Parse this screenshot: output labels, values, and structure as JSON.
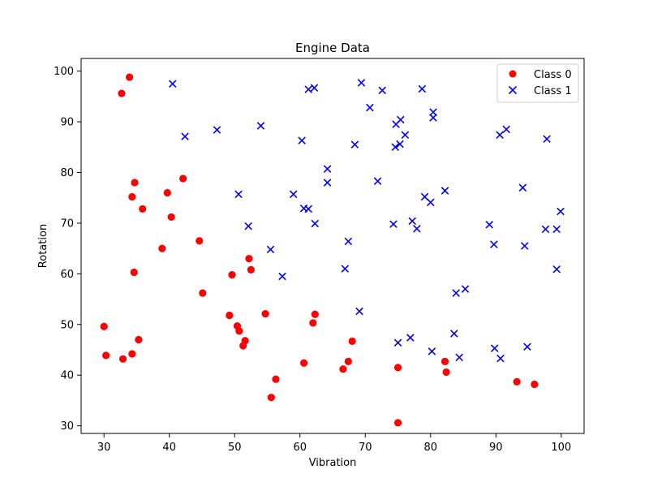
{
  "chart_data": {
    "type": "scatter",
    "title": "Engine Data",
    "xlabel": "Vibration",
    "ylabel": "Rotation",
    "xlim": [
      26.5,
      103.5
    ],
    "ylim": [
      28.5,
      102.5
    ],
    "xticks": [
      30,
      40,
      50,
      60,
      70,
      80,
      90,
      100
    ],
    "yticks": [
      30,
      40,
      50,
      60,
      70,
      80,
      90,
      100
    ],
    "grid": false,
    "legend_position": "top-right",
    "series": [
      {
        "name": "Class 0",
        "color": "#ff0000",
        "marker": "circle",
        "points": [
          [
            32.7,
            95.6
          ],
          [
            33.9,
            98.8
          ],
          [
            30.0,
            49.6
          ],
          [
            30.3,
            43.9
          ],
          [
            32.9,
            43.2
          ],
          [
            34.3,
            75.2
          ],
          [
            34.7,
            78.0
          ],
          [
            35.9,
            72.8
          ],
          [
            34.6,
            60.3
          ],
          [
            34.3,
            44.2
          ],
          [
            35.3,
            47.0
          ],
          [
            38.9,
            65.0
          ],
          [
            39.7,
            76.0
          ],
          [
            40.3,
            71.2
          ],
          [
            42.1,
            78.8
          ],
          [
            44.6,
            66.5
          ],
          [
            45.1,
            56.2
          ],
          [
            49.2,
            51.8
          ],
          [
            49.6,
            59.8
          ],
          [
            50.4,
            49.7
          ],
          [
            50.7,
            48.7
          ],
          [
            51.3,
            45.8
          ],
          [
            51.6,
            46.8
          ],
          [
            52.2,
            63.0
          ],
          [
            52.5,
            60.8
          ],
          [
            54.7,
            52.1
          ],
          [
            55.6,
            35.6
          ],
          [
            56.3,
            39.2
          ],
          [
            60.6,
            42.4
          ],
          [
            62.0,
            50.3
          ],
          [
            62.3,
            52.0
          ],
          [
            66.6,
            41.2
          ],
          [
            67.4,
            42.7
          ],
          [
            68.0,
            46.7
          ],
          [
            75.0,
            41.5
          ],
          [
            75.0,
            30.6
          ],
          [
            82.2,
            42.7
          ],
          [
            82.4,
            40.6
          ],
          [
            93.2,
            38.7
          ],
          [
            95.9,
            38.2
          ]
        ]
      },
      {
        "name": "Class 1",
        "color": "#0000ff",
        "marker": "x",
        "points": [
          [
            40.5,
            97.5
          ],
          [
            42.4,
            87.1
          ],
          [
            47.3,
            88.4
          ],
          [
            50.6,
            75.7
          ],
          [
            52.1,
            69.4
          ],
          [
            54.0,
            89.2
          ],
          [
            55.5,
            64.8
          ],
          [
            57.3,
            59.5
          ],
          [
            59.0,
            75.7
          ],
          [
            60.3,
            86.3
          ],
          [
            60.6,
            72.9
          ],
          [
            61.3,
            96.4
          ],
          [
            61.3,
            72.8
          ],
          [
            62.2,
            96.7
          ],
          [
            62.3,
            69.9
          ],
          [
            64.2,
            80.7
          ],
          [
            64.2,
            78.0
          ],
          [
            66.9,
            61.0
          ],
          [
            67.4,
            66.4
          ],
          [
            68.4,
            85.5
          ],
          [
            69.1,
            52.6
          ],
          [
            69.4,
            97.7
          ],
          [
            70.7,
            92.8
          ],
          [
            71.9,
            78.3
          ],
          [
            72.6,
            96.2
          ],
          [
            74.3,
            69.8
          ],
          [
            74.6,
            85.0
          ],
          [
            74.7,
            89.5
          ],
          [
            75.0,
            46.4
          ],
          [
            75.3,
            85.6
          ],
          [
            75.4,
            90.4
          ],
          [
            76.1,
            87.4
          ],
          [
            76.9,
            47.4
          ],
          [
            77.2,
            70.4
          ],
          [
            77.9,
            68.9
          ],
          [
            78.7,
            96.5
          ],
          [
            79.1,
            75.2
          ],
          [
            80.0,
            74.1
          ],
          [
            80.2,
            44.7
          ],
          [
            80.4,
            91.9
          ],
          [
            80.4,
            90.8
          ],
          [
            82.2,
            76.4
          ],
          [
            83.6,
            48.2
          ],
          [
            83.9,
            56.2
          ],
          [
            84.4,
            43.5
          ],
          [
            85.3,
            57.0
          ],
          [
            89.0,
            69.7
          ],
          [
            89.7,
            65.8
          ],
          [
            89.8,
            45.3
          ],
          [
            90.6,
            87.4
          ],
          [
            90.7,
            43.3
          ],
          [
            91.6,
            88.5
          ],
          [
            94.1,
            77.0
          ],
          [
            94.4,
            65.5
          ],
          [
            94.8,
            45.6
          ],
          [
            97.6,
            68.8
          ],
          [
            97.8,
            86.6
          ],
          [
            99.3,
            68.8
          ],
          [
            99.3,
            60.9
          ],
          [
            99.9,
            72.3
          ]
        ]
      }
    ]
  }
}
